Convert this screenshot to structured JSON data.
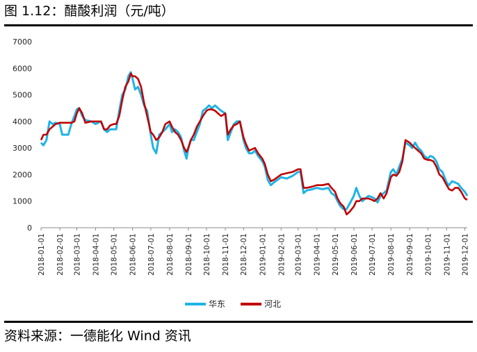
{
  "figure_title": "图 1.12：醋酸利润（元/吨）",
  "source": "资料来源：一德能化  Wind 资讯",
  "colors": {
    "series_1": "#1fb3e6",
    "series_2": "#c00000"
  },
  "chart_data": {
    "type": "line",
    "title": "",
    "xlabel": "",
    "ylabel": "",
    "ylim": [
      0,
      7000
    ],
    "yticks": [
      0,
      1000,
      2000,
      3000,
      4000,
      5000,
      6000,
      7000
    ],
    "xlim": [
      "2018-01-01",
      "2019-12-05"
    ],
    "xticks": [
      "2018-01-01",
      "2018-02-01",
      "2018-03-01",
      "2018-04-01",
      "2018-05-01",
      "2018-06-01",
      "2018-07-01",
      "2018-08-01",
      "2018-09-01",
      "2018-10-01",
      "2018-11-01",
      "2018-12-01",
      "2019-01-01",
      "2019-02-01",
      "2019-03-01",
      "2019-04-01",
      "2019-05-01",
      "2019-06-01",
      "2019-07-01",
      "2019-08-01",
      "2019-09-01",
      "2019-10-01",
      "2019-11-01",
      "2019-12-01"
    ],
    "grid": false,
    "legend": "bottom",
    "series": [
      {
        "name": "华东",
        "points": [
          [
            "2018-01-01",
            3200
          ],
          [
            "2018-01-05",
            3100
          ],
          [
            "2018-01-10",
            3300
          ],
          [
            "2018-01-15",
            4000
          ],
          [
            "2018-01-20",
            3900
          ],
          [
            "2018-01-25",
            3950
          ],
          [
            "2018-02-01",
            3900
          ],
          [
            "2018-02-05",
            3500
          ],
          [
            "2018-02-15",
            3500
          ],
          [
            "2018-02-20",
            3900
          ],
          [
            "2018-02-25",
            4200
          ],
          [
            "2018-03-01",
            4450
          ],
          [
            "2018-03-05",
            4500
          ],
          [
            "2018-03-10",
            4200
          ],
          [
            "2018-03-15",
            4050
          ],
          [
            "2018-03-25",
            4000
          ],
          [
            "2018-04-01",
            3900
          ],
          [
            "2018-04-10",
            4000
          ],
          [
            "2018-04-15",
            3700
          ],
          [
            "2018-04-20",
            3600
          ],
          [
            "2018-04-25",
            3700
          ],
          [
            "2018-05-01",
            3700
          ],
          [
            "2018-05-05",
            3700
          ],
          [
            "2018-05-10",
            4400
          ],
          [
            "2018-05-15",
            5000
          ],
          [
            "2018-05-20",
            5200
          ],
          [
            "2018-05-25",
            5700
          ],
          [
            "2018-05-29",
            5850
          ],
          [
            "2018-06-01",
            5600
          ],
          [
            "2018-06-05",
            5200
          ],
          [
            "2018-06-10",
            5300
          ],
          [
            "2018-06-15",
            5000
          ],
          [
            "2018-06-20",
            4600
          ],
          [
            "2018-06-25",
            4400
          ],
          [
            "2018-07-01",
            3500
          ],
          [
            "2018-07-05",
            3000
          ],
          [
            "2018-07-10",
            2800
          ],
          [
            "2018-07-15",
            3500
          ],
          [
            "2018-07-20",
            3600
          ],
          [
            "2018-07-25",
            3700
          ],
          [
            "2018-08-01",
            3900
          ],
          [
            "2018-08-05",
            3600
          ],
          [
            "2018-08-10",
            3700
          ],
          [
            "2018-08-15",
            3600
          ],
          [
            "2018-08-20",
            3400
          ],
          [
            "2018-08-25",
            2900
          ],
          [
            "2018-08-29",
            2600
          ],
          [
            "2018-09-01",
            3000
          ],
          [
            "2018-09-05",
            3300
          ],
          [
            "2018-09-10",
            3300
          ],
          [
            "2018-09-15",
            3600
          ],
          [
            "2018-09-20",
            3900
          ],
          [
            "2018-09-25",
            4400
          ],
          [
            "2018-10-01",
            4500
          ],
          [
            "2018-10-05",
            4600
          ],
          [
            "2018-10-10",
            4500
          ],
          [
            "2018-10-15",
            4600
          ],
          [
            "2018-10-20",
            4500
          ],
          [
            "2018-10-25",
            4400
          ],
          [
            "2018-11-01",
            4300
          ],
          [
            "2018-11-05",
            3300
          ],
          [
            "2018-11-10",
            3600
          ],
          [
            "2018-11-15",
            3900
          ],
          [
            "2018-11-20",
            4000
          ],
          [
            "2018-11-25",
            4000
          ],
          [
            "2018-12-01",
            3300
          ],
          [
            "2018-12-05",
            3000
          ],
          [
            "2018-12-10",
            2800
          ],
          [
            "2018-12-15",
            2800
          ],
          [
            "2018-12-20",
            2900
          ],
          [
            "2018-12-25",
            2700
          ],
          [
            "2019-01-01",
            2500
          ],
          [
            "2019-01-05",
            2300
          ],
          [
            "2019-01-10",
            1800
          ],
          [
            "2019-01-15",
            1600
          ],
          [
            "2019-01-20",
            1700
          ],
          [
            "2019-02-01",
            1900
          ],
          [
            "2019-02-10",
            1850
          ],
          [
            "2019-02-20",
            1950
          ],
          [
            "2019-03-01",
            2100
          ],
          [
            "2019-03-05",
            2100
          ],
          [
            "2019-03-10",
            1300
          ],
          [
            "2019-03-15",
            1400
          ],
          [
            "2019-03-25",
            1450
          ],
          [
            "2019-04-01",
            1500
          ],
          [
            "2019-04-10",
            1450
          ],
          [
            "2019-04-20",
            1500
          ],
          [
            "2019-04-25",
            1300
          ],
          [
            "2019-05-01",
            1200
          ],
          [
            "2019-05-05",
            1000
          ],
          [
            "2019-05-10",
            800
          ],
          [
            "2019-05-15",
            700
          ],
          [
            "2019-05-20",
            700
          ],
          [
            "2019-05-25",
            900
          ],
          [
            "2019-06-01",
            1200
          ],
          [
            "2019-06-05",
            1500
          ],
          [
            "2019-06-10",
            1200
          ],
          [
            "2019-06-15",
            1000
          ],
          [
            "2019-06-20",
            1100
          ],
          [
            "2019-06-25",
            1200
          ],
          [
            "2019-07-01",
            1150
          ],
          [
            "2019-07-05",
            1100
          ],
          [
            "2019-07-10",
            950
          ],
          [
            "2019-07-15",
            1200
          ],
          [
            "2019-07-20",
            1300
          ],
          [
            "2019-07-25",
            1400
          ],
          [
            "2019-08-01",
            2100
          ],
          [
            "2019-08-05",
            2200
          ],
          [
            "2019-08-10",
            2000
          ],
          [
            "2019-08-15",
            2300
          ],
          [
            "2019-08-20",
            2600
          ],
          [
            "2019-08-25",
            3200
          ],
          [
            "2019-09-01",
            3100
          ],
          [
            "2019-09-05",
            3000
          ],
          [
            "2019-09-10",
            3200
          ],
          [
            "2019-09-15",
            3000
          ],
          [
            "2019-09-20",
            2900
          ],
          [
            "2019-09-25",
            2700
          ],
          [
            "2019-10-01",
            2600
          ],
          [
            "2019-10-05",
            2700
          ],
          [
            "2019-10-10",
            2650
          ],
          [
            "2019-10-15",
            2500
          ],
          [
            "2019-10-20",
            2200
          ],
          [
            "2019-10-25",
            2100
          ],
          [
            "2019-11-01",
            1700
          ],
          [
            "2019-11-05",
            1600
          ],
          [
            "2019-11-10",
            1750
          ],
          [
            "2019-11-15",
            1700
          ],
          [
            "2019-11-20",
            1650
          ],
          [
            "2019-11-25",
            1500
          ],
          [
            "2019-12-01",
            1350
          ],
          [
            "2019-12-05",
            1200
          ]
        ]
      },
      {
        "name": "河北",
        "points": [
          [
            "2018-01-01",
            3300
          ],
          [
            "2018-01-05",
            3500
          ],
          [
            "2018-01-10",
            3500
          ],
          [
            "2018-01-15",
            3700
          ],
          [
            "2018-01-20",
            3800
          ],
          [
            "2018-01-25",
            3900
          ],
          [
            "2018-02-01",
            3950
          ],
          [
            "2018-02-10",
            3950
          ],
          [
            "2018-02-20",
            3950
          ],
          [
            "2018-02-25",
            4000
          ],
          [
            "2018-03-01",
            4300
          ],
          [
            "2018-03-05",
            4500
          ],
          [
            "2018-03-10",
            4300
          ],
          [
            "2018-03-15",
            3950
          ],
          [
            "2018-03-25",
            4000
          ],
          [
            "2018-04-01",
            4000
          ],
          [
            "2018-04-10",
            4000
          ],
          [
            "2018-04-15",
            3700
          ],
          [
            "2018-04-20",
            3700
          ],
          [
            "2018-04-25",
            3850
          ],
          [
            "2018-05-01",
            3900
          ],
          [
            "2018-05-05",
            3900
          ],
          [
            "2018-05-10",
            4200
          ],
          [
            "2018-05-15",
            4800
          ],
          [
            "2018-05-20",
            5300
          ],
          [
            "2018-05-25",
            5500
          ],
          [
            "2018-05-29",
            5800
          ],
          [
            "2018-06-01",
            5700
          ],
          [
            "2018-06-05",
            5700
          ],
          [
            "2018-06-10",
            5600
          ],
          [
            "2018-06-15",
            5300
          ],
          [
            "2018-06-20",
            4700
          ],
          [
            "2018-06-25",
            4200
          ],
          [
            "2018-07-01",
            3600
          ],
          [
            "2018-07-05",
            3500
          ],
          [
            "2018-07-10",
            3300
          ],
          [
            "2018-07-15",
            3400
          ],
          [
            "2018-07-20",
            3600
          ],
          [
            "2018-07-25",
            3900
          ],
          [
            "2018-08-01",
            4000
          ],
          [
            "2018-08-05",
            3800
          ],
          [
            "2018-08-10",
            3600
          ],
          [
            "2018-08-15",
            3500
          ],
          [
            "2018-08-20",
            3300
          ],
          [
            "2018-08-25",
            3000
          ],
          [
            "2018-08-29",
            2850
          ],
          [
            "2018-09-01",
            3000
          ],
          [
            "2018-09-05",
            3300
          ],
          [
            "2018-09-10",
            3500
          ],
          [
            "2018-09-15",
            3800
          ],
          [
            "2018-09-20",
            4000
          ],
          [
            "2018-09-25",
            4200
          ],
          [
            "2018-10-01",
            4400
          ],
          [
            "2018-10-05",
            4450
          ],
          [
            "2018-10-10",
            4450
          ],
          [
            "2018-10-15",
            4400
          ],
          [
            "2018-10-20",
            4300
          ],
          [
            "2018-10-25",
            4200
          ],
          [
            "2018-11-01",
            4300
          ],
          [
            "2018-11-05",
            3500
          ],
          [
            "2018-11-10",
            3700
          ],
          [
            "2018-11-15",
            3850
          ],
          [
            "2018-11-20",
            3900
          ],
          [
            "2018-11-25",
            4000
          ],
          [
            "2018-12-01",
            3400
          ],
          [
            "2018-12-05",
            3150
          ],
          [
            "2018-12-10",
            2900
          ],
          [
            "2018-12-15",
            2950
          ],
          [
            "2018-12-20",
            3000
          ],
          [
            "2018-12-25",
            2800
          ],
          [
            "2019-01-01",
            2600
          ],
          [
            "2019-01-05",
            2400
          ],
          [
            "2019-01-10",
            2000
          ],
          [
            "2019-01-15",
            1750
          ],
          [
            "2019-01-20",
            1800
          ],
          [
            "2019-02-01",
            2000
          ],
          [
            "2019-02-10",
            2050
          ],
          [
            "2019-02-20",
            2100
          ],
          [
            "2019-03-01",
            2200
          ],
          [
            "2019-03-05",
            2200
          ],
          [
            "2019-03-10",
            1500
          ],
          [
            "2019-03-15",
            1500
          ],
          [
            "2019-03-25",
            1550
          ],
          [
            "2019-04-01",
            1600
          ],
          [
            "2019-04-10",
            1600
          ],
          [
            "2019-04-20",
            1650
          ],
          [
            "2019-04-25",
            1500
          ],
          [
            "2019-05-01",
            1350
          ],
          [
            "2019-05-05",
            1100
          ],
          [
            "2019-05-10",
            900
          ],
          [
            "2019-05-15",
            800
          ],
          [
            "2019-05-20",
            500
          ],
          [
            "2019-05-25",
            600
          ],
          [
            "2019-06-01",
            800
          ],
          [
            "2019-06-05",
            1000
          ],
          [
            "2019-06-10",
            1000
          ],
          [
            "2019-06-15",
            1100
          ],
          [
            "2019-06-20",
            1100
          ],
          [
            "2019-06-25",
            1100
          ],
          [
            "2019-07-01",
            1050
          ],
          [
            "2019-07-05",
            1000
          ],
          [
            "2019-07-10",
            1100
          ],
          [
            "2019-07-15",
            1300
          ],
          [
            "2019-07-20",
            1100
          ],
          [
            "2019-07-25",
            1300
          ],
          [
            "2019-08-01",
            1900
          ],
          [
            "2019-08-05",
            2000
          ],
          [
            "2019-08-10",
            1950
          ],
          [
            "2019-08-15",
            2100
          ],
          [
            "2019-08-20",
            2500
          ],
          [
            "2019-08-25",
            3300
          ],
          [
            "2019-09-01",
            3200
          ],
          [
            "2019-09-05",
            3100
          ],
          [
            "2019-09-10",
            3000
          ],
          [
            "2019-09-15",
            2900
          ],
          [
            "2019-09-20",
            2800
          ],
          [
            "2019-09-25",
            2600
          ],
          [
            "2019-10-01",
            2550
          ],
          [
            "2019-10-05",
            2550
          ],
          [
            "2019-10-10",
            2500
          ],
          [
            "2019-10-15",
            2300
          ],
          [
            "2019-10-20",
            2000
          ],
          [
            "2019-10-25",
            1900
          ],
          [
            "2019-11-01",
            1600
          ],
          [
            "2019-11-05",
            1450
          ],
          [
            "2019-11-10",
            1400
          ],
          [
            "2019-11-15",
            1500
          ],
          [
            "2019-11-20",
            1500
          ],
          [
            "2019-11-25",
            1350
          ],
          [
            "2019-12-01",
            1100
          ],
          [
            "2019-12-05",
            1050
          ]
        ]
      }
    ]
  }
}
